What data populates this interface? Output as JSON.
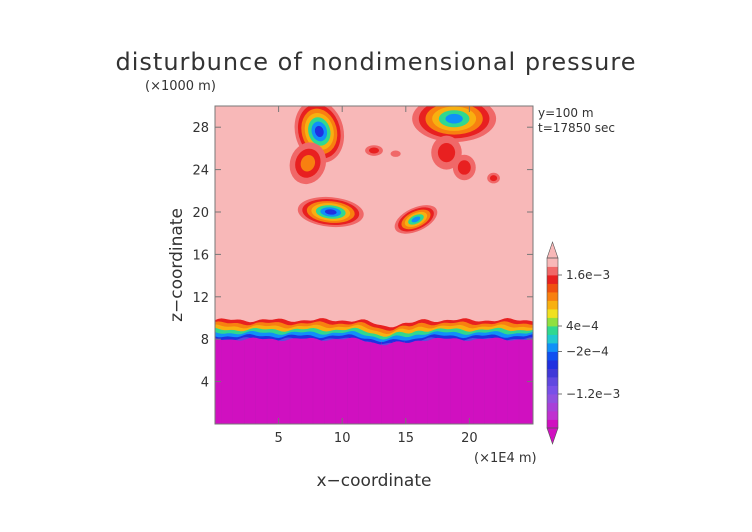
{
  "chart_data": {
    "type": "heatmap",
    "title": "disturbunce of nondimensional pressure",
    "xlabel": "x−coordinate",
    "ylabel": "z−coordinate",
    "x_unit": "(×1E4 m)",
    "y_unit": "(×1000 m)",
    "annotations": [
      "y=100  m",
      "t=17850 sec"
    ],
    "xlim": [
      0,
      25
    ],
    "ylim": [
      0,
      30
    ],
    "x_ticks": [
      5,
      10,
      15,
      20
    ],
    "y_ticks": [
      4,
      8,
      12,
      16,
      20,
      24,
      28
    ],
    "colorbar": {
      "tick_labels": [
        "1.6e−3",
        "4e−4",
        "−2e−4",
        "−1.2e−3"
      ],
      "colors": [
        "#d010c0",
        "#c030d0",
        "#a840d8",
        "#9050e0",
        "#7850e8",
        "#6048e0",
        "#4038d8",
        "#2030e0",
        "#1050f0",
        "#1090f8",
        "#20c8d0",
        "#30d890",
        "#90e040",
        "#f0e020",
        "#f8b010",
        "#f88010",
        "#f05010",
        "#e82020",
        "#f06868",
        "#f8b8b8"
      ],
      "levels": [
        -0.002,
        -0.0018,
        -0.0016,
        -0.0014,
        -0.0012,
        -0.001,
        -0.0008,
        -0.0006,
        -0.0004,
        -0.0002,
        0,
        0.0002,
        0.0004,
        0.0006,
        0.0008,
        0.001,
        0.0012,
        0.0014,
        0.0016
      ]
    },
    "field": {
      "background_value": 0,
      "background_color": "#f8b8b8",
      "lower_layer": {
        "z_top": 8,
        "value": -0.002,
        "color": "#d010c0"
      },
      "transition_band": [
        {
          "z": 9.8,
          "color": "#e82020"
        },
        {
          "z": 9.5,
          "color": "#f88010"
        },
        {
          "z": 9.2,
          "color": "#f8b010"
        },
        {
          "z": 8.9,
          "color": "#30d890"
        },
        {
          "z": 8.6,
          "color": "#1090f8"
        },
        {
          "z": 8.3,
          "color": "#2030e0"
        },
        {
          "z": 8.0,
          "color": "#6048e0"
        }
      ]
    }
  }
}
